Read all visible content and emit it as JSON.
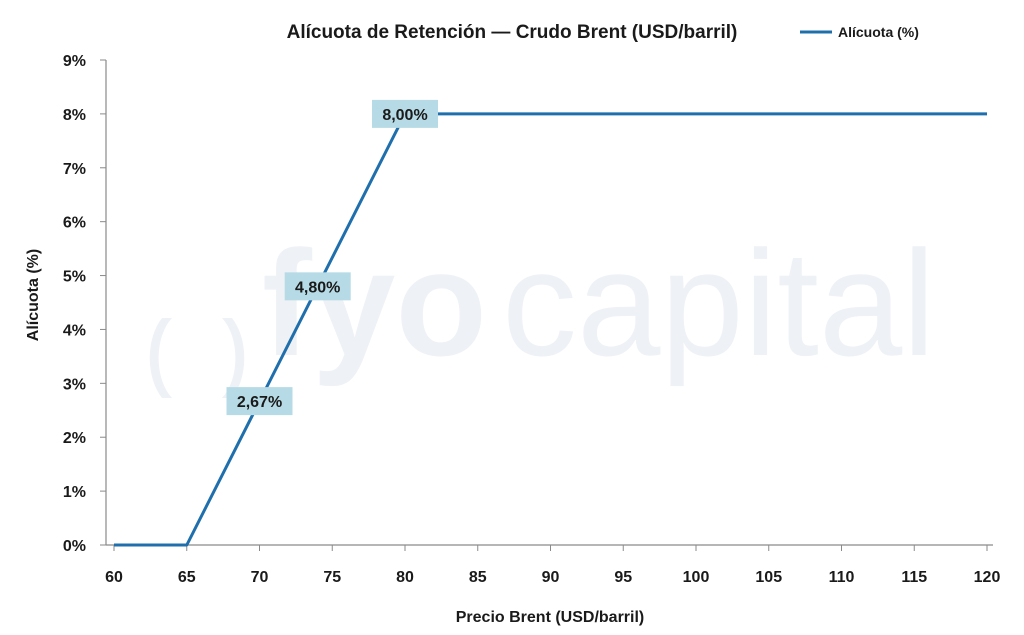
{
  "chart_data": {
    "type": "line",
    "title": "Alícuota de Retención — Crudo Brent (USD/barril)",
    "xlabel": "Precio Brent (USD/barril)",
    "ylabel": "Alícuota (%)",
    "xlim": [
      60,
      120
    ],
    "ylim": [
      0,
      9
    ],
    "x_ticks": [
      "60",
      "65",
      "70",
      "75",
      "80",
      "85",
      "90",
      "95",
      "100",
      "105",
      "110",
      "115",
      "120"
    ],
    "y_ticks": [
      "0%",
      "1%",
      "2%",
      "3%",
      "4%",
      "5%",
      "6%",
      "7%",
      "8%",
      "9%"
    ],
    "grid": false,
    "legend_position": "top-right",
    "series": [
      {
        "name": "Alícuota (%)",
        "color": "#1f6fad",
        "points": [
          {
            "x": 60,
            "y": 0
          },
          {
            "x": 65,
            "y": 0
          },
          {
            "x": 80,
            "y": 8
          },
          {
            "x": 120,
            "y": 8
          }
        ]
      }
    ],
    "annotations": [
      {
        "x": 70,
        "y": 2.67,
        "label": "2,67%"
      },
      {
        "x": 74,
        "y": 4.8,
        "label": "4,80%"
      },
      {
        "x": 80,
        "y": 8,
        "label": "8,00%"
      }
    ],
    "annotation_bg": "#b7dbe6"
  },
  "watermark": {
    "part1": "fyo",
    "part2": "capital"
  }
}
